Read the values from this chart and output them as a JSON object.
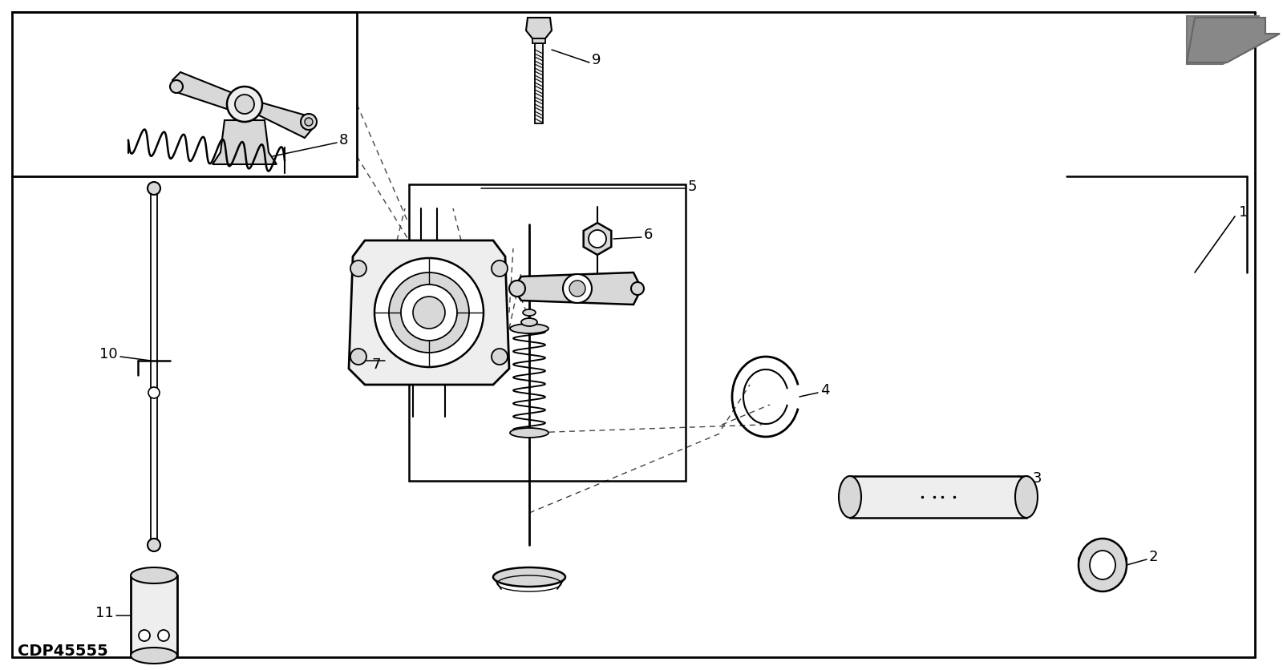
{
  "background_color": "#ffffff",
  "line_color": "#000000",
  "label_cdp": "CDP45555",
  "arrow_color": "#777777",
  "dashed_color": "#555555",
  "gray_fill": "#d8d8d8",
  "light_fill": "#eeeeee",
  "mid_fill": "#c8c8c8"
}
